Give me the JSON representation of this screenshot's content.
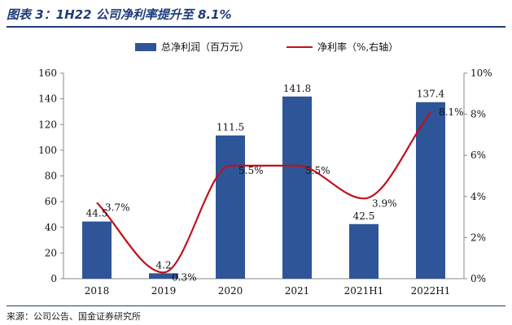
{
  "header": {
    "title": "图表 3：1H22 公司净利率提升至 8.1%"
  },
  "footer": {
    "source": "来源：公司公告、国金证券研究所"
  },
  "colors": {
    "bar": "#2e5597",
    "line": "#c0121b",
    "axis": "#888888",
    "rule": "#1f3b7a"
  },
  "chart_data": {
    "type": "bar",
    "title": "1H22 公司净利率提升至 8.1%",
    "categories": [
      "2018",
      "2019",
      "2020",
      "2021",
      "2021H1",
      "2022H1"
    ],
    "series": [
      {
        "name": "总净利润（百万元）",
        "type": "bar",
        "axis": "left",
        "values": [
          44.5,
          4.2,
          111.5,
          141.8,
          42.5,
          137.4
        ],
        "labels": [
          "44.5",
          "4.2",
          "111.5",
          "141.8",
          "42.5",
          "137.4"
        ]
      },
      {
        "name": "净利率（%,右轴）",
        "type": "line",
        "axis": "right",
        "smooth": true,
        "values": [
          3.7,
          0.3,
          5.5,
          5.5,
          3.9,
          8.1
        ],
        "labels": [
          "3.7%",
          "0.3%",
          "5.5%",
          "5.5%",
          "3.9%",
          "8.1%"
        ]
      }
    ],
    "y_left": {
      "range": [
        0,
        160
      ],
      "ticks": [
        "0",
        "20",
        "40",
        "60",
        "80",
        "100",
        "120",
        "140",
        "160"
      ]
    },
    "y_right": {
      "range": [
        0,
        10
      ],
      "ticks": [
        "0%",
        "2%",
        "4%",
        "6%",
        "8%",
        "10%"
      ]
    },
    "legend": {
      "position": "top"
    },
    "grid": false
  }
}
